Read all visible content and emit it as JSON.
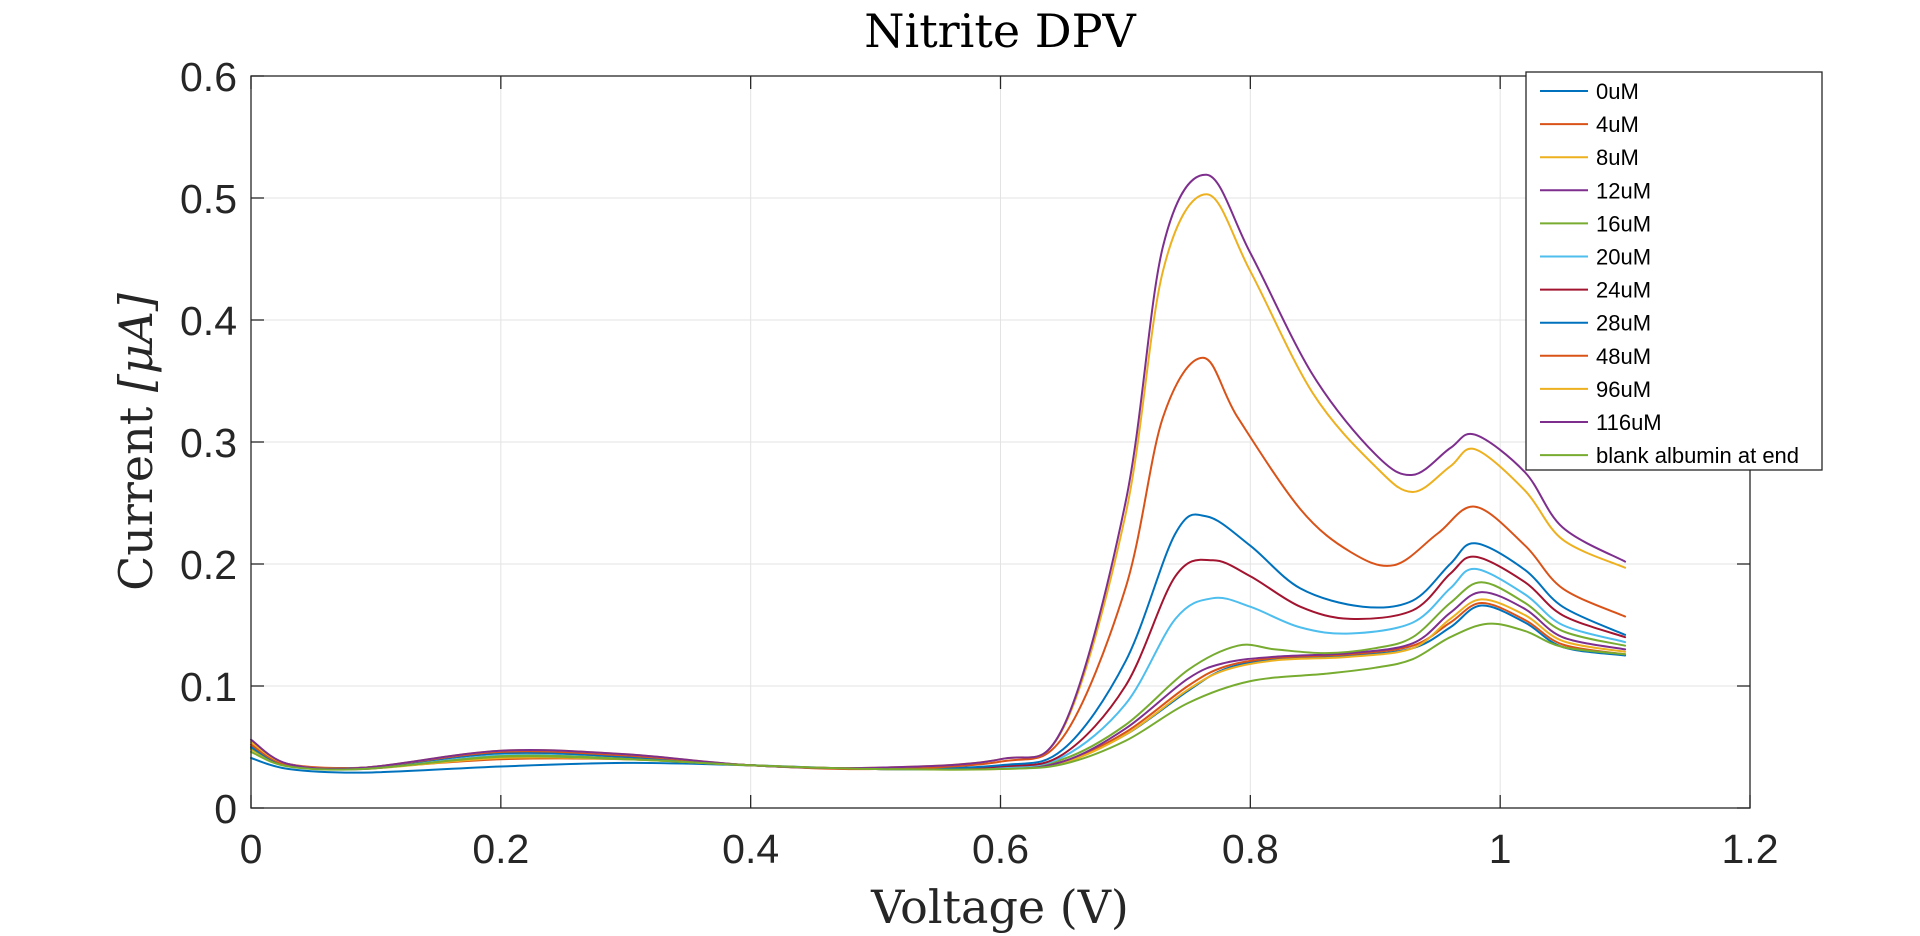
{
  "chart_data": {
    "type": "line",
    "title": "Nitrite DPV",
    "xlabel": "Voltage (V)",
    "ylabel_main": "Current ",
    "ylabel_unit": "[μA]",
    "xlim": [
      0,
      1.2
    ],
    "ylim": [
      0,
      0.6
    ],
    "xticks": [
      0,
      0.2,
      0.4,
      0.6,
      0.8,
      1,
      1.2
    ],
    "xtick_labels": [
      "0",
      "0.2",
      "0.4",
      "0.6",
      "0.8",
      "1",
      "1.2"
    ],
    "yticks": [
      0,
      0.1,
      0.2,
      0.3,
      0.4,
      0.5,
      0.6
    ],
    "ytick_labels": [
      "0",
      "0.1",
      "0.2",
      "0.3",
      "0.4",
      "0.5",
      "0.6"
    ],
    "grid": true,
    "legend_position": "top-right",
    "series": [
      {
        "name": "0uM",
        "color": "#0072BD",
        "x": [
          0,
          0.03,
          0.09,
          0.2,
          0.3,
          0.4,
          0.5,
          0.6,
          0.65,
          0.7,
          0.75,
          0.78,
          0.82,
          0.88,
          0.93,
          0.96,
          0.985,
          1.02,
          1.05,
          1.1
        ],
        "y": [
          0.041,
          0.032,
          0.029,
          0.034,
          0.037,
          0.035,
          0.032,
          0.033,
          0.038,
          0.06,
          0.096,
          0.114,
          0.122,
          0.125,
          0.131,
          0.148,
          0.166,
          0.152,
          0.132,
          0.125
        ]
      },
      {
        "name": "4uM",
        "color": "#D95319",
        "x": [
          0,
          0.03,
          0.09,
          0.2,
          0.3,
          0.4,
          0.5,
          0.6,
          0.65,
          0.7,
          0.75,
          0.78,
          0.82,
          0.88,
          0.93,
          0.96,
          0.985,
          1.02,
          1.05,
          1.1
        ],
        "y": [
          0.05,
          0.036,
          0.033,
          0.04,
          0.04,
          0.035,
          0.032,
          0.033,
          0.038,
          0.062,
          0.1,
          0.116,
          0.123,
          0.126,
          0.133,
          0.152,
          0.168,
          0.154,
          0.134,
          0.126
        ]
      },
      {
        "name": "8uM",
        "color": "#EDB120",
        "x": [
          0,
          0.03,
          0.09,
          0.2,
          0.3,
          0.4,
          0.5,
          0.6,
          0.65,
          0.7,
          0.75,
          0.78,
          0.82,
          0.88,
          0.93,
          0.96,
          0.985,
          1.02,
          1.05,
          1.1
        ],
        "y": [
          0.048,
          0.035,
          0.032,
          0.041,
          0.04,
          0.035,
          0.032,
          0.032,
          0.037,
          0.06,
          0.097,
          0.113,
          0.121,
          0.124,
          0.131,
          0.155,
          0.171,
          0.158,
          0.137,
          0.128
        ]
      },
      {
        "name": "12uM",
        "color": "#7E2F8E",
        "x": [
          0,
          0.03,
          0.09,
          0.2,
          0.3,
          0.4,
          0.5,
          0.6,
          0.65,
          0.7,
          0.75,
          0.78,
          0.82,
          0.88,
          0.93,
          0.96,
          0.985,
          1.02,
          1.05,
          1.1
        ],
        "y": [
          0.052,
          0.036,
          0.032,
          0.043,
          0.042,
          0.035,
          0.032,
          0.033,
          0.038,
          0.065,
          0.106,
          0.119,
          0.124,
          0.127,
          0.135,
          0.16,
          0.177,
          0.163,
          0.14,
          0.13
        ]
      },
      {
        "name": "16uM",
        "color": "#77AC30",
        "x": [
          0,
          0.03,
          0.09,
          0.2,
          0.3,
          0.4,
          0.5,
          0.6,
          0.65,
          0.7,
          0.75,
          0.79,
          0.82,
          0.86,
          0.9,
          0.93,
          0.96,
          0.985,
          1.02,
          1.05,
          1.1
        ],
        "y": [
          0.049,
          0.035,
          0.033,
          0.043,
          0.041,
          0.035,
          0.032,
          0.033,
          0.04,
          0.068,
          0.113,
          0.133,
          0.13,
          0.127,
          0.131,
          0.14,
          0.168,
          0.185,
          0.168,
          0.145,
          0.133
        ]
      },
      {
        "name": "20uM",
        "color": "#4DBEEE",
        "x": [
          0,
          0.03,
          0.09,
          0.2,
          0.3,
          0.4,
          0.5,
          0.6,
          0.65,
          0.7,
          0.74,
          0.77,
          0.8,
          0.84,
          0.88,
          0.93,
          0.96,
          0.98,
          1.02,
          1.05,
          1.1
        ],
        "y": [
          0.05,
          0.035,
          0.033,
          0.044,
          0.042,
          0.035,
          0.032,
          0.033,
          0.042,
          0.085,
          0.155,
          0.172,
          0.165,
          0.148,
          0.143,
          0.152,
          0.18,
          0.196,
          0.175,
          0.15,
          0.136
        ]
      },
      {
        "name": "24uM",
        "color": "#A2142F",
        "x": [
          0,
          0.03,
          0.09,
          0.2,
          0.3,
          0.4,
          0.5,
          0.6,
          0.65,
          0.7,
          0.74,
          0.77,
          0.8,
          0.84,
          0.88,
          0.93,
          0.96,
          0.98,
          1.02,
          1.05,
          1.1
        ],
        "y": [
          0.05,
          0.035,
          0.033,
          0.045,
          0.042,
          0.035,
          0.032,
          0.034,
          0.044,
          0.1,
          0.19,
          0.203,
          0.19,
          0.165,
          0.155,
          0.162,
          0.192,
          0.206,
          0.185,
          0.158,
          0.14
        ]
      },
      {
        "name": "28uM",
        "color": "#0072BD",
        "x": [
          0,
          0.03,
          0.09,
          0.2,
          0.3,
          0.4,
          0.5,
          0.6,
          0.65,
          0.7,
          0.74,
          0.765,
          0.8,
          0.84,
          0.89,
          0.93,
          0.96,
          0.98,
          1.02,
          1.05,
          1.1
        ],
        "y": [
          0.05,
          0.035,
          0.033,
          0.045,
          0.042,
          0.035,
          0.032,
          0.035,
          0.048,
          0.12,
          0.225,
          0.239,
          0.215,
          0.18,
          0.165,
          0.17,
          0.2,
          0.217,
          0.195,
          0.165,
          0.142
        ]
      },
      {
        "name": "48uM",
        "color": "#D95319",
        "x": [
          0,
          0.03,
          0.09,
          0.2,
          0.3,
          0.4,
          0.5,
          0.6,
          0.65,
          0.7,
          0.73,
          0.762,
          0.79,
          0.84,
          0.88,
          0.915,
          0.95,
          0.98,
          1.02,
          1.05,
          1.1
        ],
        "y": [
          0.052,
          0.035,
          0.033,
          0.046,
          0.043,
          0.035,
          0.032,
          0.038,
          0.058,
          0.18,
          0.32,
          0.369,
          0.32,
          0.245,
          0.21,
          0.199,
          0.225,
          0.247,
          0.215,
          0.18,
          0.157
        ]
      },
      {
        "name": "96uM",
        "color": "#EDB120",
        "x": [
          0,
          0.03,
          0.09,
          0.2,
          0.3,
          0.4,
          0.5,
          0.6,
          0.65,
          0.7,
          0.73,
          0.765,
          0.8,
          0.85,
          0.9,
          0.93,
          0.96,
          0.98,
          1.02,
          1.05,
          1.1
        ],
        "y": [
          0.054,
          0.036,
          0.033,
          0.047,
          0.044,
          0.035,
          0.033,
          0.04,
          0.065,
          0.24,
          0.44,
          0.503,
          0.44,
          0.34,
          0.28,
          0.259,
          0.28,
          0.294,
          0.26,
          0.22,
          0.197
        ]
      },
      {
        "name": "116uM",
        "color": "#7E2F8E",
        "x": [
          0,
          0.03,
          0.09,
          0.2,
          0.3,
          0.4,
          0.5,
          0.6,
          0.65,
          0.7,
          0.73,
          0.765,
          0.8,
          0.85,
          0.9,
          0.93,
          0.96,
          0.98,
          1.02,
          1.05,
          1.1
        ],
        "y": [
          0.056,
          0.036,
          0.033,
          0.047,
          0.044,
          0.035,
          0.033,
          0.04,
          0.066,
          0.25,
          0.46,
          0.519,
          0.455,
          0.355,
          0.29,
          0.273,
          0.295,
          0.306,
          0.275,
          0.23,
          0.202
        ]
      },
      {
        "name": "blank albumin at end",
        "color": "#77AC30",
        "x": [
          0,
          0.03,
          0.09,
          0.2,
          0.3,
          0.4,
          0.5,
          0.6,
          0.65,
          0.7,
          0.75,
          0.8,
          0.86,
          0.9,
          0.93,
          0.96,
          0.99,
          1.02,
          1.05,
          1.1
        ],
        "y": [
          0.046,
          0.034,
          0.032,
          0.042,
          0.04,
          0.035,
          0.032,
          0.032,
          0.036,
          0.055,
          0.086,
          0.104,
          0.11,
          0.115,
          0.122,
          0.14,
          0.151,
          0.145,
          0.132,
          0.126
        ]
      }
    ]
  }
}
